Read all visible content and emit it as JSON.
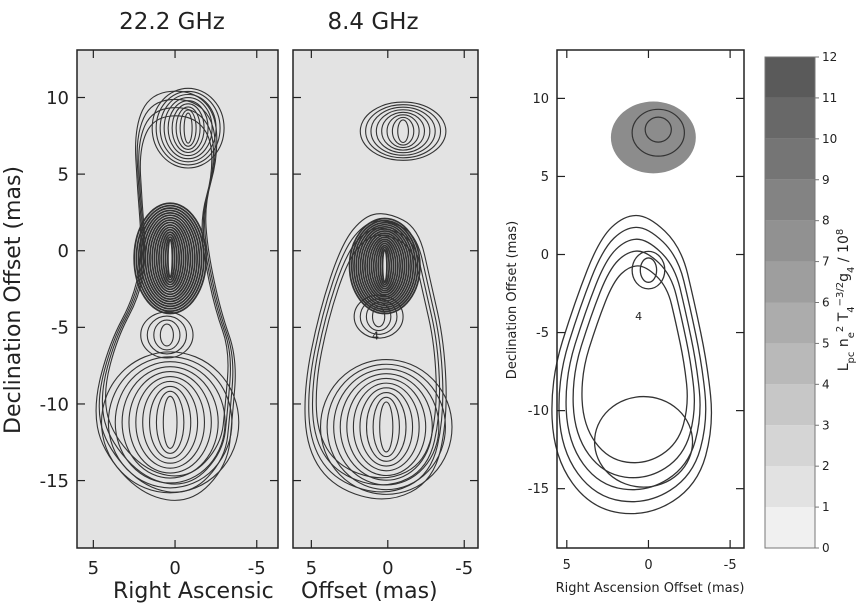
{
  "panels": [
    {
      "title": "22.2 GHz",
      "ylabel": "Declination Offset (mas)",
      "xlabel": "Right Ascensic",
      "xlim": [
        6,
        -6.3
      ],
      "ylim": [
        -19.4,
        13.1
      ],
      "xticks": [
        5,
        0,
        -5
      ],
      "yticks": [
        10,
        5,
        0,
        -5,
        -10,
        -15
      ]
    },
    {
      "title": "8.4 GHz",
      "xlabel": "Offset (mas)",
      "annotation": "4",
      "xlim": [
        6.2,
        -5.9
      ],
      "ylim": [
        -19.4,
        13.1
      ],
      "xticks": [
        5,
        0,
        -5
      ],
      "yticks": [
        10,
        5,
        0,
        -5,
        -10,
        -15
      ]
    },
    {
      "ylabel": "Declination Offset (mas)",
      "xlabel": "Right Ascension Offset (mas)",
      "annotation": "4",
      "xlim": [
        5.6,
        -5.85
      ],
      "ylim": [
        -18.8,
        13.1
      ],
      "xticks": [
        5,
        0,
        -5
      ],
      "yticks": [
        10,
        5,
        0,
        -5,
        -10,
        -15
      ]
    }
  ],
  "colorbar": {
    "ylim": [
      0,
      12
    ],
    "yticks": [
      0,
      1,
      2,
      3,
      4,
      5,
      6,
      7,
      8,
      9,
      10,
      11,
      12
    ],
    "label": [
      {
        "text": "L"
      },
      {
        "text": "pc",
        "shift": "sub"
      },
      {
        "text": " n"
      },
      {
        "text": "e",
        "shift": "sub"
      },
      {
        "text": "2",
        "shift": "sup"
      },
      {
        "text": " T"
      },
      {
        "text": "4",
        "shift": "sub"
      },
      {
        "text": "−3/2",
        "shift": "sup"
      },
      {
        "text": "g"
      },
      {
        "text": "4",
        "shift": "sub"
      },
      {
        "text": " / 10"
      },
      {
        "text": "8",
        "shift": "sup"
      }
    ]
  }
}
